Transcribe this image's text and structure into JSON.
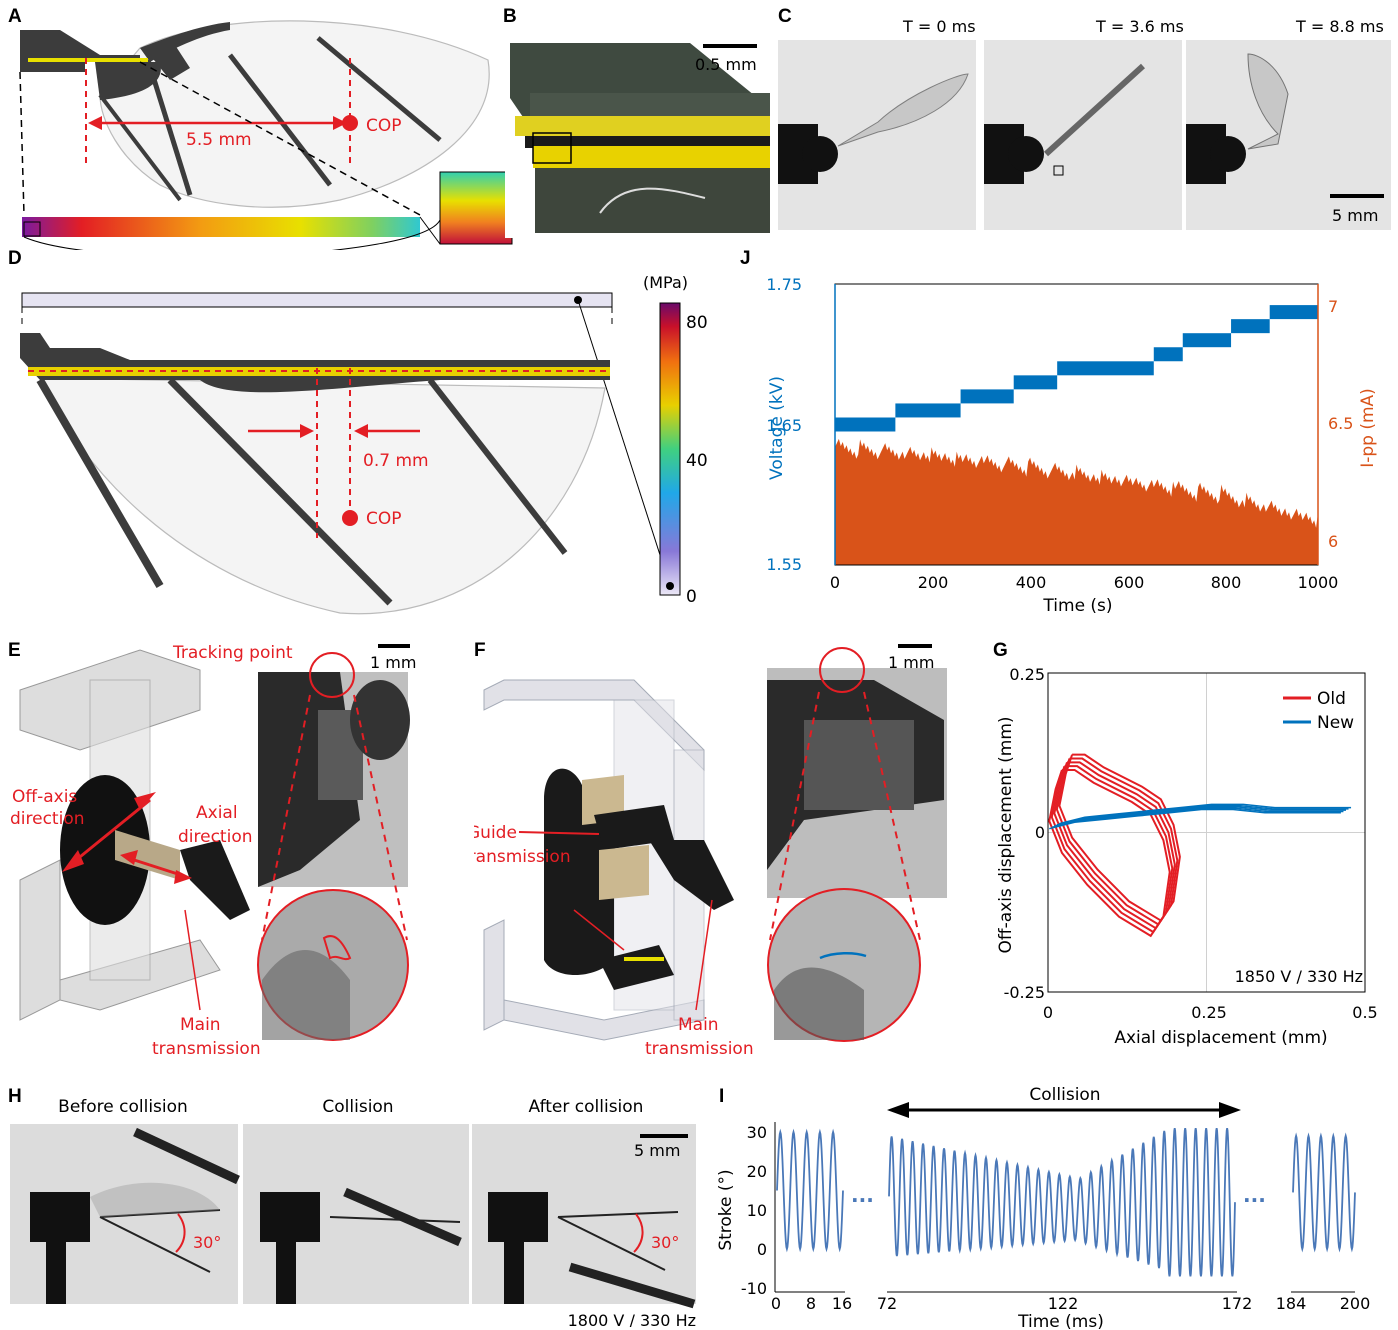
{
  "panel_labels": [
    "A",
    "B",
    "C",
    "D",
    "E",
    "F",
    "G",
    "H",
    "I",
    "J"
  ],
  "colors": {
    "red": "#e31e24",
    "blue": "#0072bd",
    "orange": "#d95319",
    "wing_dark": "#3c3c3c",
    "yellow": "#e8e000"
  },
  "panelA": {
    "distance": "5.5 mm",
    "cop": "COP"
  },
  "panelB": {
    "scale": "0.5 mm"
  },
  "panelC": {
    "times": [
      "T = 0 ms",
      "T = 3.6 ms",
      "T = 8.8 ms"
    ],
    "scale": "5 mm"
  },
  "panelD": {
    "distance": "0.7 mm",
    "cop": "COP",
    "unit": "(MPa)",
    "ticks": [
      "80",
      "40",
      "0"
    ]
  },
  "panelE": {
    "tracking": "Tracking point",
    "scale": "1 mm",
    "offaxis1": "Off-axis",
    "offaxis2": "direction",
    "axial1": "Axial",
    "axial2": "direction",
    "main1": "Main",
    "main2": "transmission"
  },
  "panelF": {
    "scale": "1 mm",
    "guide1": "Guide",
    "guide2": "transmission",
    "main1": "Main",
    "main2": "transmission"
  },
  "panelG": {
    "xlabel": "Axial displacement (mm)",
    "ylabel": "Off-axis displacement (mm)",
    "condition": "1850 V / 330 Hz",
    "xticks": [
      "0",
      "0.25",
      "0.5"
    ],
    "yticks": [
      "0.25",
      "0",
      "-0.25"
    ],
    "legend": [
      "Old",
      "New"
    ]
  },
  "panelH": {
    "titles": [
      "Before collision",
      "Collision",
      "After collision"
    ],
    "angle": "30°",
    "scale": "5 mm",
    "condition": "1800 V / 330 Hz"
  },
  "panelI": {
    "title": "Collision",
    "ylabel": "Stroke (°)",
    "xlabel": "Time (ms)",
    "yticks": [
      "30",
      "20",
      "10",
      "0",
      "-10"
    ],
    "xticks": [
      "0",
      "8",
      "16",
      "72",
      "122",
      "172",
      "184",
      "200"
    ],
    "dots": "..."
  },
  "panelJ": {
    "ylabel_left": "Voltage (kV)",
    "ylabel_right": "I-pp (mA)",
    "xlabel": "Time (s)",
    "yticks_left": [
      "1.75",
      "1.65",
      "1.55"
    ],
    "yticks_right": [
      "7",
      "6.5",
      "6"
    ],
    "xticks": [
      "0",
      "200",
      "400",
      "600",
      "800",
      "1000"
    ]
  },
  "chart_data": [
    {
      "type": "line",
      "panel": "G",
      "xlabel": "Axial displacement (mm)",
      "ylabel": "Off-axis displacement (mm)",
      "xlim": [
        0,
        0.5
      ],
      "ylim": [
        -0.25,
        0.25
      ],
      "legend_position": "top-right",
      "series": [
        {
          "name": "Old",
          "color": "#e31e24",
          "x": [
            0.03,
            0.05,
            0.08,
            0.14,
            0.17,
            0.19,
            0.2,
            0.19,
            0.17,
            0.12,
            0.07,
            0.03,
            0.01,
            0.02,
            0.03
          ],
          "y": [
            0.11,
            0.11,
            0.09,
            0.06,
            0.04,
            0.0,
            -0.05,
            -0.12,
            -0.15,
            -0.12,
            -0.07,
            -0.02,
            0.03,
            0.08,
            0.11
          ]
        },
        {
          "name": "New",
          "color": "#0072bd",
          "x": [
            0.01,
            0.05,
            0.1,
            0.15,
            0.2,
            0.25,
            0.3,
            0.35,
            0.4,
            0.47
          ],
          "y": [
            0.01,
            0.02,
            0.025,
            0.03,
            0.035,
            0.04,
            0.04,
            0.035,
            0.035,
            0.035
          ]
        }
      ]
    },
    {
      "type": "line",
      "panel": "J",
      "xlabel": "Time (s)",
      "ylabel": "Voltage (kV)",
      "ylabel_right": "I-pp (mA)",
      "xlim": [
        0,
        1000
      ],
      "ylim": [
        1.55,
        1.75
      ],
      "ylim_right": [
        6,
        7
      ],
      "series": [
        {
          "axis": "left",
          "color": "#0072bd",
          "x": [
            0,
            125,
            125,
            260,
            260,
            370,
            370,
            460,
            460,
            660,
            660,
            720,
            720,
            820,
            820,
            900,
            900,
            1000
          ],
          "y": [
            1.65,
            1.65,
            1.66,
            1.66,
            1.67,
            1.67,
            1.68,
            1.68,
            1.69,
            1.69,
            1.7,
            1.7,
            1.71,
            1.71,
            1.72,
            1.72,
            1.73,
            1.73
          ]
        },
        {
          "axis": "right",
          "color": "#d95319",
          "x": [
            0,
            200,
            400,
            600,
            800,
            1000
          ],
          "y": [
            6.42,
            6.39,
            6.35,
            6.3,
            6.25,
            6.16
          ]
        }
      ]
    },
    {
      "type": "line",
      "panel": "I",
      "xlabel": "Time (ms)",
      "ylabel": "Stroke (°)",
      "ylim": [
        -10,
        30
      ],
      "segments": [
        {
          "x_range": [
            0,
            16
          ],
          "amplitude": [
            0,
            30
          ]
        },
        {
          "x_range": [
            72,
            172
          ],
          "amplitude_start": [
            -2,
            29
          ],
          "amplitude_middle": [
            3,
            17
          ],
          "amplitude_end": [
            -7,
            32
          ]
        },
        {
          "x_range": [
            184,
            200
          ],
          "amplitude": [
            0,
            29
          ]
        }
      ]
    }
  ]
}
